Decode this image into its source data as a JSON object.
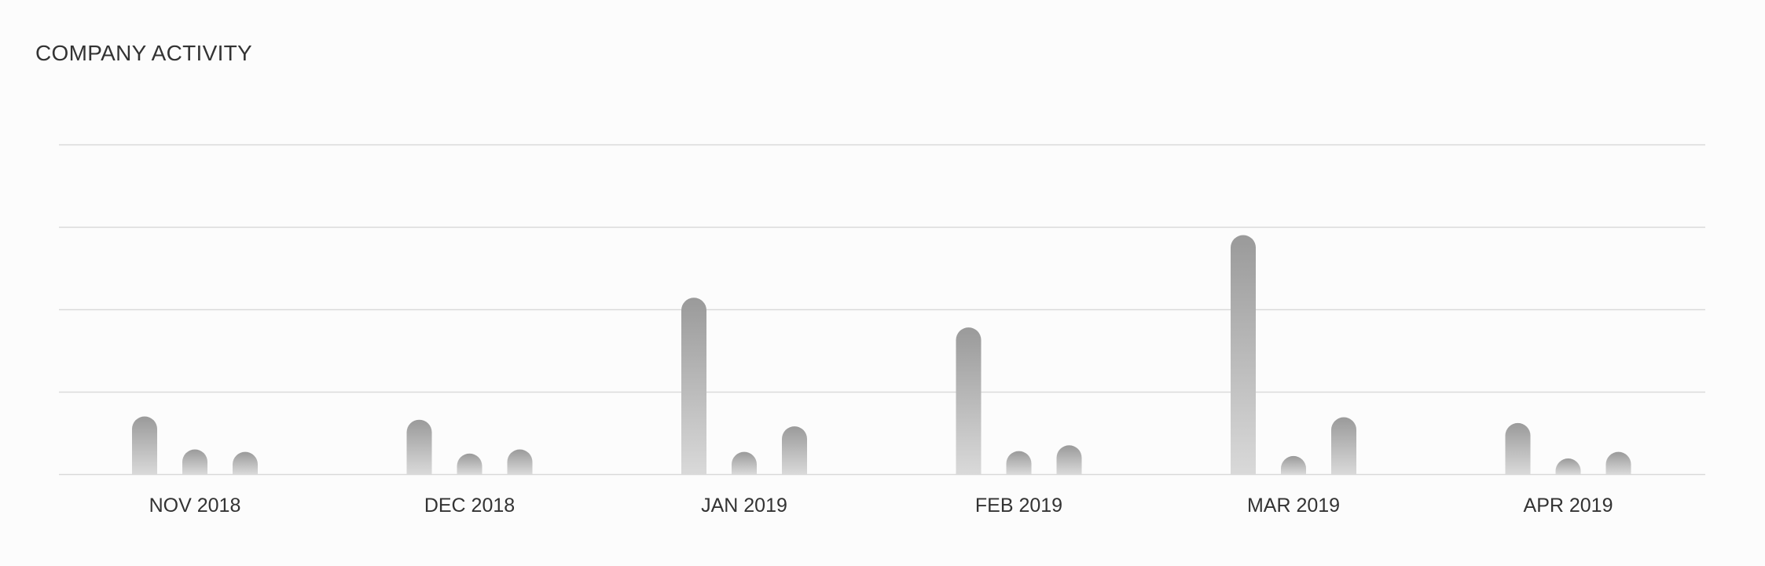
{
  "title": "COMPANY ACTIVITY",
  "chart_data": {
    "type": "bar",
    "title": "COMPANY ACTIVITY",
    "xlabel": "",
    "ylabel": "",
    "categories": [
      "NOV 2018",
      "DEC 2018",
      "JAN 2019",
      "FEB 2019",
      "MAR 2019",
      "APR 2019"
    ],
    "series": [
      {
        "values": [
          0.7,
          0.66,
          2.14,
          1.78,
          2.9,
          0.62
        ]
      },
      {
        "values": [
          0.3,
          0.25,
          0.27,
          0.28,
          0.22,
          0.19
        ]
      },
      {
        "values": [
          0.27,
          0.3,
          0.58,
          0.35,
          0.69,
          0.27
        ]
      }
    ],
    "ylim": [
      0,
      4
    ],
    "grid": true,
    "legend": "none",
    "bar_color": "#9a9a9a",
    "bar_color_light": "#d9d9d9",
    "grid_color": "#d9d9d9"
  }
}
